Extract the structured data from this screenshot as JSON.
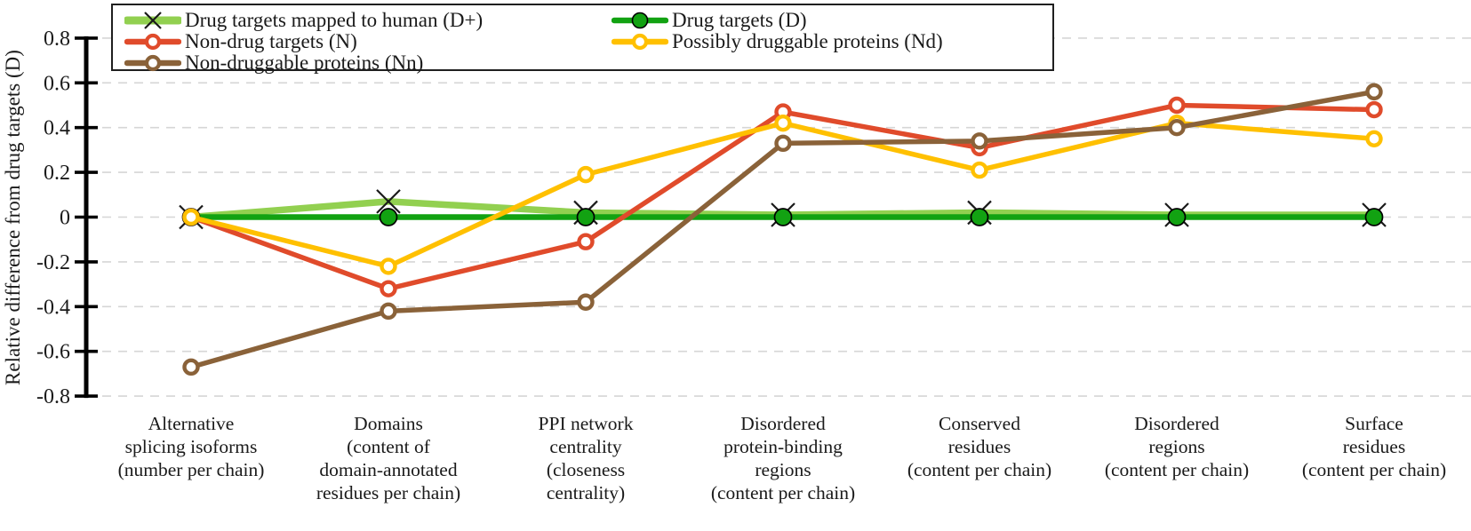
{
  "chart_data": {
    "type": "line",
    "title": "",
    "xlabel": "",
    "ylabel": "Relative difference from drug targets (D)",
    "ylim": [
      -0.8,
      0.8
    ],
    "ytick_step": 0.2,
    "yticks": [
      "0.8",
      "0.6",
      "0.4",
      "0.2",
      "0",
      "-0.2",
      "-0.4",
      "-0.6",
      "-0.8"
    ],
    "grid": "horizontal-dashed",
    "gridline_color": "#d6d6d6",
    "axis_color": "#000000",
    "legend_position": "top-left-two-columns",
    "categories": [
      "Alternative\nsplicing isoforms\n(number per chain)",
      "Domains\n(content of\ndomain-annotated\nresidues per chain)",
      "PPI network\ncentrality\n(closeness\ncentrality)",
      "Disordered\nprotein-binding\nregions\n(content per chain)",
      "Conserved\nresidues\n(content per chain)",
      "Disordered\nregions\n(content per chain)",
      "Surface\nresidues\n(content per chain)"
    ],
    "series": [
      {
        "name": "Drug targets mapped to human (D+)",
        "color": "#92d050",
        "marker": "x",
        "marker_color": "#1a1a1a",
        "values": [
          0,
          0.07,
          0.02,
          0.01,
          0.02,
          0.01,
          0.01
        ]
      },
      {
        "name": "Drug targets (D)",
        "color": "#12a212",
        "marker": "filled-circle",
        "marker_color": "#12a212",
        "values": [
          0,
          0,
          0,
          0,
          0,
          0,
          0
        ]
      },
      {
        "name": "Non-drug targets (N)",
        "color": "#e04b2b",
        "marker": "open-circle",
        "marker_color": "#e04b2b",
        "values": [
          0,
          -0.32,
          -0.11,
          0.47,
          0.31,
          0.5,
          0.48
        ]
      },
      {
        "name": "Possibly druggable proteins (Nd)",
        "color": "#ffc000",
        "marker": "open-circle",
        "marker_color": "#ffc000",
        "values": [
          0,
          -0.22,
          0.19,
          0.42,
          0.21,
          0.42,
          0.35
        ]
      },
      {
        "name": "Non-druggable proteins (Nn)",
        "color": "#8a6239",
        "marker": "open-circle",
        "marker_color": "#8a6239",
        "values": [
          -0.67,
          -0.42,
          -0.38,
          0.33,
          0.34,
          0.4,
          0.56
        ]
      }
    ],
    "legend_columns": [
      [
        0,
        2,
        4
      ],
      [
        1,
        3
      ]
    ]
  }
}
